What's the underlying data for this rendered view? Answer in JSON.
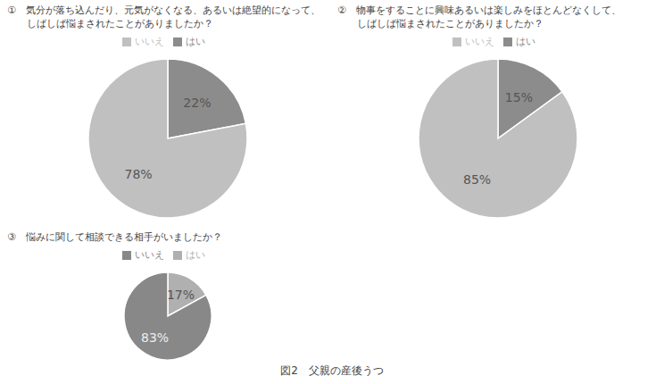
{
  "title": "図2　父親の産後うつ",
  "chart_data": [
    {
      "type": "pie",
      "title": "①　気分が落ち込んだり、元気がなくなる、あるいは絶望的になって、\n　　しばしば悩まされたことがありましたか？",
      "categories": [
        "はい",
        "いいえ"
      ],
      "values": [
        22,
        78
      ],
      "value_labels": [
        "22%",
        "78%"
      ],
      "colors": [
        "#8c8c8c",
        "#c0c0c0"
      ],
      "legend": "top"
    },
    {
      "type": "pie",
      "title": "②　物事をすることに興味あるいは楽しみをほとんどなくして、\n　　しばしば悩まされたことがありましたか？",
      "categories": [
        "はい",
        "いいえ"
      ],
      "values": [
        15,
        85
      ],
      "value_labels": [
        "15%",
        "85%"
      ],
      "colors": [
        "#8c8c8c",
        "#c0c0c0"
      ],
      "legend": "top"
    },
    {
      "type": "pie",
      "title": "③　悩みに関して相談できる相手がいましたか？",
      "categories": [
        "はい",
        "いいえ"
      ],
      "values": [
        17,
        83
      ],
      "value_labels": [
        "17%",
        "83%"
      ],
      "colors": [
        "#b0b0b0",
        "#888888"
      ],
      "legend": "top"
    }
  ]
}
